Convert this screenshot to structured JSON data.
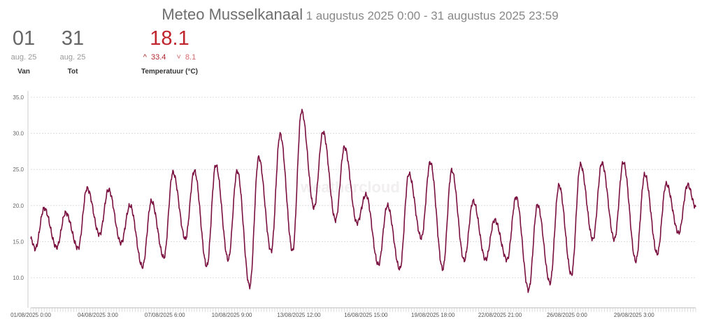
{
  "header": {
    "title": "Meteo Musselkanaal",
    "range": "1 augustus 2025 0:00 - 31 augustus 2025 23:59"
  },
  "stats": {
    "from": {
      "day": "01",
      "month": "aug. 25",
      "label": "Van"
    },
    "to": {
      "day": "31",
      "month": "aug. 25",
      "label": "Tot"
    },
    "temperature": {
      "value": "18.1",
      "max": "33.4",
      "min": "8.1",
      "label": "Temperatuur (°C)",
      "max_icon": "chevron-up-icon",
      "min_icon": "chevron-down-icon"
    }
  },
  "watermark": "weathercloud",
  "chart_data": {
    "type": "line",
    "title": "Meteo Musselkanaal",
    "ylabel": "Temperatuur (°C)",
    "xlabel": "",
    "ylim": [
      5.8,
      35.9
    ],
    "yticks": [
      "10.0",
      "15.0",
      "20.0",
      "25.0",
      "30.0",
      "35.0"
    ],
    "ytick_values": [
      10,
      15,
      20,
      25,
      30,
      35
    ],
    "xticks": [
      "01/08/2025 0:00",
      "04/08/2025 3:00",
      "07/08/2025 6:00",
      "10/08/2025 9:00",
      "13/08/2025 12:00",
      "16/08/2025 15:00",
      "19/08/2025 18:00",
      "22/08/2025 21:00",
      "26/08/2025 0:00",
      "29/08/2025 3:00"
    ],
    "xtick_hours": [
      0,
      75,
      150,
      225,
      300,
      375,
      450,
      525,
      600,
      675
    ],
    "total_hours": 744,
    "grid": true,
    "color": "#7a1040",
    "series": [
      {
        "name": "Temperatuur",
        "start": 15.4,
        "end": 19.8,
        "daily_max": [
          19.6,
          19.0,
          22.4,
          22.2,
          20.0,
          20.6,
          24.6,
          24.8,
          25.6,
          24.8,
          26.7,
          29.9,
          33.1,
          30.2,
          28.1,
          21.5,
          20.0,
          24.4,
          26.0,
          24.9,
          20.6,
          18.0,
          21.2,
          20.1,
          22.8,
          25.7,
          25.9,
          26.0,
          24.3,
          23.0,
          22.9
        ],
        "daily_min": [
          14.0,
          14.2,
          14.1,
          16.0,
          14.8,
          11.5,
          12.8,
          15.4,
          11.6,
          12.5,
          8.8,
          13.7,
          13.7,
          19.7,
          18.0,
          17.6,
          11.8,
          11.2,
          15.5,
          11.2,
          12.4,
          12.5,
          12.5,
          8.3,
          9.3,
          10.4,
          15.3,
          15.3,
          12.3,
          13.3,
          16.2
        ]
      }
    ]
  }
}
